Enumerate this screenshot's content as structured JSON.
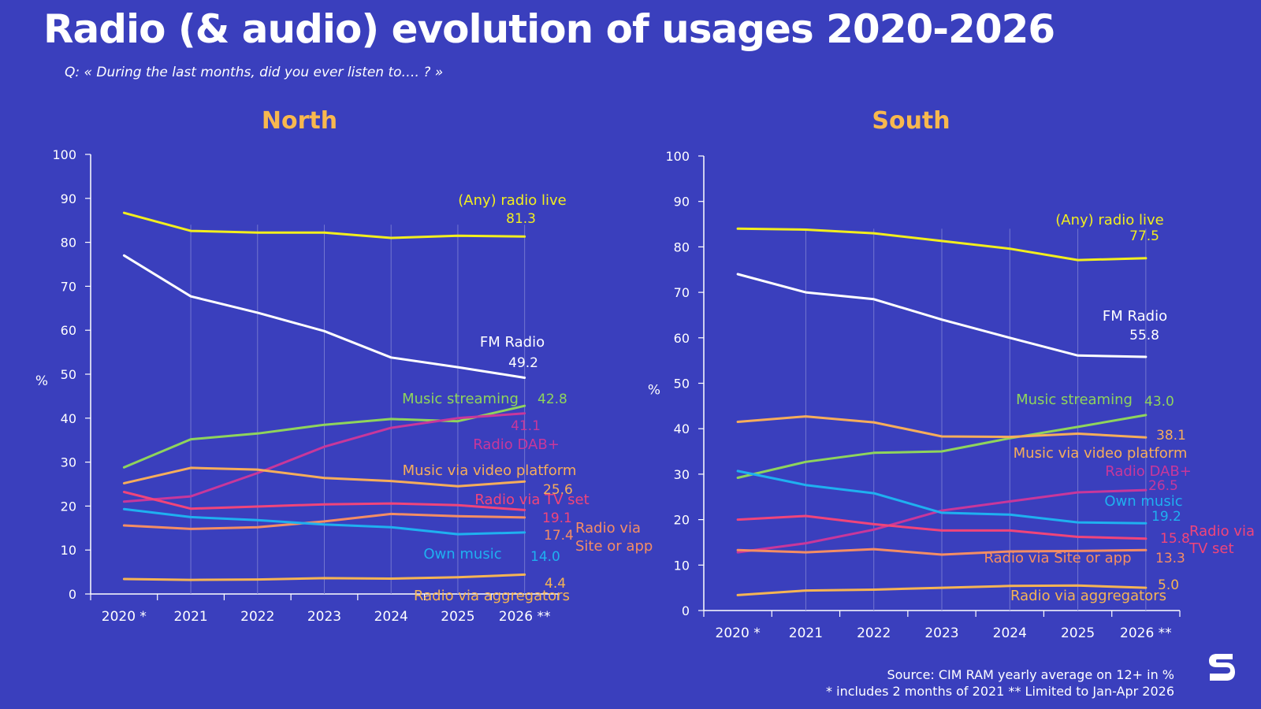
{
  "title": "Radio (& audio) evolution of usages  2020-2026",
  "subtitle": "Q: « During the last months, did you ever listen to…. ? »",
  "source_lines": [
    "Source: CIM RAM yearly average on 12+ in %",
    "* includes 2 months of 2021 ** Limited to Jan-Apr 2026"
  ],
  "logo_icon": "s-logo-icon",
  "colors": {
    "background": "#3a3fbd",
    "title_accent": "#f8b84e"
  },
  "chart_data": [
    {
      "type": "line",
      "title": "North",
      "ylabel": "%",
      "ylim": [
        0,
        100
      ],
      "yticks": [
        0,
        10,
        20,
        30,
        40,
        50,
        60,
        70,
        80,
        90,
        100
      ],
      "categories": [
        "2020 *",
        "2021",
        "2022",
        "2023",
        "2024",
        "2025",
        "2026 **"
      ],
      "series": [
        {
          "name": "(Any) radio live",
          "color": "#f2ee1e",
          "values": [
            86.7,
            82.6,
            82.2,
            82.2,
            81.0,
            81.5,
            81.3
          ],
          "end_label": "81.3"
        },
        {
          "name": "FM Radio",
          "color": "#ffffff",
          "values": [
            77.0,
            67.7,
            64.0,
            59.8,
            53.8,
            51.6,
            49.2
          ],
          "end_label": "49.2"
        },
        {
          "name": "Music streaming",
          "color": "#8fd45c",
          "values": [
            28.8,
            35.2,
            36.5,
            38.5,
            39.8,
            39.3,
            42.8
          ],
          "end_label": "42.8"
        },
        {
          "name": "Radio DAB+",
          "color": "#c8379b",
          "values": [
            21.0,
            22.2,
            27.5,
            33.5,
            37.8,
            40.0,
            41.1
          ],
          "end_label": "41.1"
        },
        {
          "name": "Music via video platform",
          "color": "#f6ad5b",
          "values": [
            25.2,
            28.7,
            28.3,
            26.4,
            25.7,
            24.5,
            25.6
          ],
          "end_label": "25.6"
        },
        {
          "name": "Radio via TV set",
          "color": "#f0457a",
          "values": [
            23.2,
            19.4,
            19.9,
            20.4,
            20.6,
            20.2,
            19.1
          ],
          "end_label": "19.1"
        },
        {
          "name": "Radio via Site or app",
          "color": "#f48d64",
          "values": [
            15.6,
            14.8,
            15.2,
            16.5,
            18.2,
            17.7,
            17.4
          ],
          "end_label": "17.4"
        },
        {
          "name": "Own music",
          "color": "#1fb0f0",
          "values": [
            19.3,
            17.5,
            16.8,
            15.8,
            15.2,
            13.6,
            14.0
          ],
          "end_label": "14.0"
        },
        {
          "name": "Radio via aggregators",
          "color": "#f6b454",
          "values": [
            3.4,
            3.2,
            3.3,
            3.6,
            3.5,
            3.8,
            4.4
          ],
          "end_label": "4.4"
        }
      ]
    },
    {
      "type": "line",
      "title": "South",
      "ylabel": "%",
      "ylim": [
        0,
        100
      ],
      "yticks": [
        0,
        10,
        20,
        30,
        40,
        50,
        60,
        70,
        80,
        90,
        100
      ],
      "categories": [
        "2020 *",
        "2021",
        "2022",
        "2023",
        "2024",
        "2025",
        "2026 **"
      ],
      "series": [
        {
          "name": "(Any) radio live",
          "color": "#f2ee1e",
          "values": [
            84.0,
            83.8,
            83.0,
            81.3,
            79.6,
            77.1,
            77.5
          ],
          "end_label": "77.5"
        },
        {
          "name": "FM Radio",
          "color": "#ffffff",
          "values": [
            74.0,
            70.0,
            68.5,
            64.0,
            60.0,
            56.1,
            55.8
          ],
          "end_label": "55.8"
        },
        {
          "name": "Music streaming",
          "color": "#8fd45c",
          "values": [
            29.2,
            32.7,
            34.7,
            35.0,
            37.9,
            40.4,
            43.0
          ],
          "end_label": "43.0"
        },
        {
          "name": "Music via video platform",
          "color": "#f6ad5b",
          "values": [
            41.5,
            42.7,
            41.4,
            38.3,
            38.2,
            38.9,
            38.1
          ],
          "end_label": "38.1"
        },
        {
          "name": "Radio DAB+",
          "color": "#c8379b",
          "values": [
            12.8,
            14.8,
            17.8,
            22.0,
            24.0,
            26.0,
            26.5
          ],
          "end_label": "26.5"
        },
        {
          "name": "Own music",
          "color": "#1fb0f0",
          "values": [
            30.7,
            27.6,
            25.8,
            21.5,
            21.1,
            19.4,
            19.2
          ],
          "end_label": "19.2"
        },
        {
          "name": "Radio via TV set",
          "color": "#f0457a",
          "values": [
            20.0,
            20.8,
            19.0,
            17.6,
            17.6,
            16.2,
            15.8
          ],
          "end_label": "15.8"
        },
        {
          "name": "Radio via Site or app",
          "color": "#f48d64",
          "values": [
            13.3,
            12.8,
            13.5,
            12.3,
            13.0,
            13.1,
            13.3
          ],
          "end_label": "13.3"
        },
        {
          "name": "Radio via aggregators",
          "color": "#f6b454",
          "values": [
            3.4,
            4.4,
            4.6,
            5.0,
            5.4,
            5.5,
            5.0
          ],
          "end_label": "5.0"
        }
      ]
    }
  ]
}
